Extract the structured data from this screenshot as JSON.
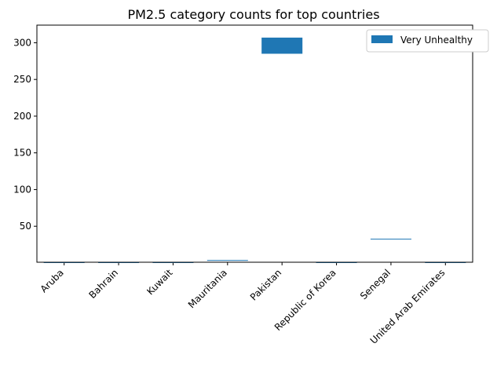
{
  "chart_data": {
    "type": "bar",
    "title": "PM2.5 category counts for top countries",
    "xlabel": "",
    "ylabel": "",
    "categories": [
      "Aruba",
      "Bahrain",
      "Kuwait",
      "Mauritania",
      "Pakistan",
      "Republic of Korea",
      "Senegal",
      "United Arab Emirates"
    ],
    "series": [
      {
        "name": "Very Unhealthy",
        "color": "#1f77b4",
        "ranges": [
          [
            1,
            1
          ],
          [
            1,
            1
          ],
          [
            1,
            1
          ],
          [
            3,
            4
          ],
          [
            285,
            307
          ],
          [
            1,
            1
          ],
          [
            32,
            33
          ],
          [
            1,
            1
          ]
        ]
      }
    ],
    "yticks": [
      50,
      100,
      150,
      200,
      250,
      300
    ],
    "ylim": [
      1,
      324
    ],
    "grid": false,
    "legend_position": "top-right"
  }
}
